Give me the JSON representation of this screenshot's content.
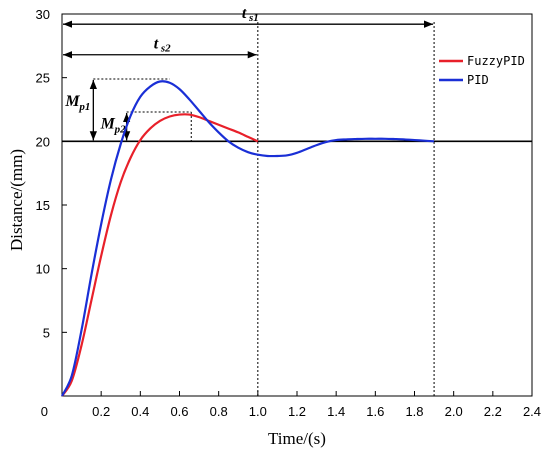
{
  "chart_data": {
    "type": "line",
    "xlabel": "Time/(s)",
    "ylabel": "Distance/(mm)",
    "xlim": [
      0,
      2.4
    ],
    "ylim": [
      0,
      30
    ],
    "x_ticks": [
      "0.2",
      "0.4",
      "0.6",
      "0.8",
      "1.0",
      "1.2",
      "1.4",
      "1.6",
      "1.8",
      "2.0",
      "2.2",
      "2.4"
    ],
    "y_ticks": [
      "0",
      "5",
      "10",
      "15",
      "20",
      "25",
      "30"
    ],
    "grid": false,
    "legend_position": "top-right",
    "reference_line": 20,
    "series": [
      {
        "name": "FuzzyPID",
        "color": "#e8202a",
        "x": [
          0,
          0.05,
          0.1,
          0.15,
          0.2,
          0.25,
          0.3,
          0.35,
          0.4,
          0.45,
          0.5,
          0.55,
          0.6,
          0.65,
          0.7,
          0.75,
          0.8,
          0.85,
          0.9,
          0.95,
          1.0
        ],
        "y": [
          0,
          1.2,
          4.0,
          7.5,
          11.0,
          14.2,
          16.8,
          18.7,
          20.1,
          21.0,
          21.6,
          21.95,
          22.1,
          22.1,
          21.9,
          21.6,
          21.3,
          21.0,
          20.7,
          20.35,
          20.0
        ]
      },
      {
        "name": "PID",
        "color": "#1a2fd6",
        "x": [
          0,
          0.05,
          0.1,
          0.15,
          0.2,
          0.25,
          0.3,
          0.35,
          0.4,
          0.45,
          0.5,
          0.55,
          0.6,
          0.65,
          0.7,
          0.75,
          0.8,
          0.85,
          0.9,
          0.95,
          1.0,
          1.05,
          1.1,
          1.15,
          1.2,
          1.25,
          1.3,
          1.35,
          1.4,
          1.45,
          1.5,
          1.55,
          1.6,
          1.65,
          1.7,
          1.75,
          1.8,
          1.85,
          1.9
        ],
        "y": [
          0,
          1.6,
          5.2,
          9.5,
          13.5,
          17.0,
          19.8,
          22.0,
          23.5,
          24.3,
          24.7,
          24.6,
          24.1,
          23.3,
          22.4,
          21.5,
          20.7,
          20.0,
          19.5,
          19.15,
          18.95,
          18.85,
          18.85,
          18.9,
          19.1,
          19.4,
          19.7,
          19.95,
          20.1,
          20.15,
          20.18,
          20.2,
          20.2,
          20.2,
          20.18,
          20.15,
          20.1,
          20.05,
          20.0
        ]
      }
    ],
    "annotations": {
      "ts1": {
        "main": "t",
        "sub": "s1",
        "x_start": 0,
        "x_end": 1.9,
        "y": 29.2
      },
      "ts2": {
        "main": "t",
        "sub": "s2",
        "x_start": 0,
        "x_end": 1.0,
        "y": 26.8
      },
      "mp1": {
        "main": "M",
        "sub": "p1",
        "x": 0.16,
        "peak_x": 0.55,
        "peak_y": 24.9,
        "base_y": 20
      },
      "mp2": {
        "main": "M",
        "sub": "p2",
        "x": 0.33,
        "peak_x": 0.66,
        "peak_y": 22.3,
        "base_y": 20
      },
      "settle_lines_x": [
        1.0,
        1.9
      ]
    }
  }
}
